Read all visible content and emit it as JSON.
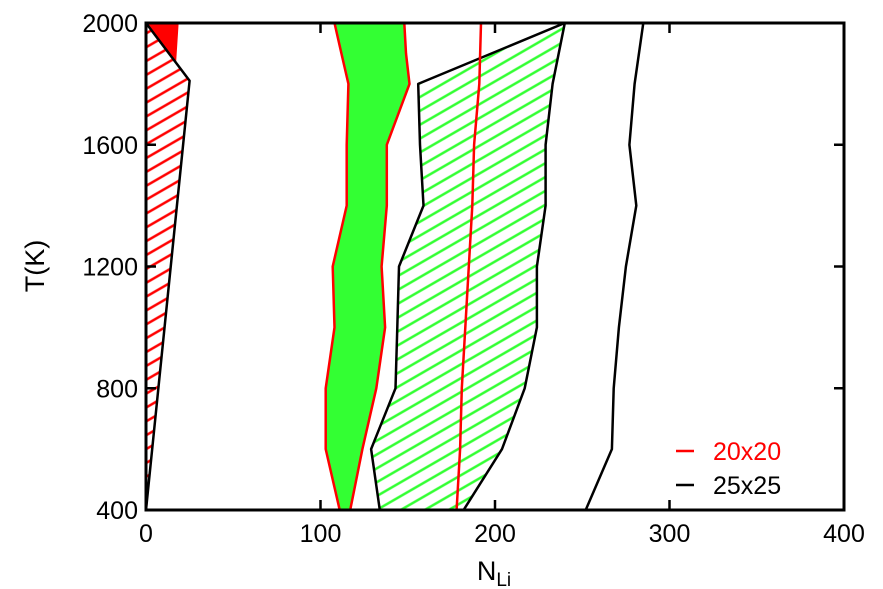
{
  "chart_data": {
    "type": "area",
    "xlabel_main": "N",
    "xlabel_sub": "Li",
    "ylabel": "T(K)",
    "xlim": [
      0,
      400
    ],
    "ylim": [
      400,
      2000
    ],
    "xticks": [
      0,
      100,
      200,
      300,
      400
    ],
    "yticks": [
      400,
      800,
      1200,
      1600,
      2000
    ],
    "grid": false,
    "legend_position": "bottom-right",
    "legend": [
      {
        "label": "20x20",
        "color": "#ff0000"
      },
      {
        "label": "25x25",
        "color": "#000000"
      }
    ],
    "regions": [
      {
        "name": "20x20-left-solid",
        "style": "solid",
        "fill": "#ff0000",
        "edge": "#ff0000",
        "left_boundary": [
          [
            0,
            400
          ],
          [
            0,
            2000
          ]
        ],
        "right_boundary": [
          [
            0,
            400
          ],
          [
            18,
            2000
          ]
        ]
      },
      {
        "name": "25x25-left-hatched",
        "style": "hatched",
        "fill": "#ff0000",
        "edge": "#000000",
        "left_boundary": [
          [
            0,
            400
          ],
          [
            0,
            2000
          ]
        ],
        "right_boundary": [
          [
            0,
            400
          ],
          [
            25,
            1810
          ]
        ]
      },
      {
        "name": "20x20-middle-solid",
        "style": "solid",
        "fill": "#33ff33",
        "edge": "#ff0000",
        "left_boundary": [
          [
            111,
            400
          ],
          [
            103,
            600
          ],
          [
            103,
            800
          ],
          [
            108,
            1000
          ],
          [
            107,
            1200
          ],
          [
            115,
            1400
          ],
          [
            115,
            1600
          ],
          [
            116,
            1800
          ],
          [
            112,
            1900
          ],
          [
            108,
            2000
          ]
        ],
        "right_boundary": [
          [
            117,
            400
          ],
          [
            124,
            600
          ],
          [
            132,
            800
          ],
          [
            137,
            1000
          ],
          [
            135,
            1200
          ],
          [
            138,
            1400
          ],
          [
            138,
            1600
          ],
          [
            151,
            1800
          ],
          [
            149,
            1900
          ],
          [
            148,
            2000
          ]
        ]
      },
      {
        "name": "25x25-middle-hatched",
        "style": "hatched",
        "fill": "#33ff33",
        "edge": "#000000",
        "left_boundary": [
          [
            134,
            400
          ],
          [
            129,
            600
          ],
          [
            143,
            800
          ],
          [
            144,
            1000
          ],
          [
            145,
            1200
          ],
          [
            159,
            1400
          ],
          [
            157,
            1600
          ],
          [
            156,
            1800
          ]
        ],
        "right_boundary": [
          [
            182,
            400
          ],
          [
            204,
            600
          ],
          [
            217,
            800
          ],
          [
            224,
            1000
          ],
          [
            224,
            1200
          ],
          [
            229,
            1400
          ],
          [
            229,
            1600
          ],
          [
            233,
            1800
          ],
          [
            240,
            2000
          ]
        ]
      }
    ],
    "lines": [
      {
        "name": "20x20-boundary",
        "color": "#ff0000",
        "points": [
          [
            178,
            400
          ],
          [
            180,
            600
          ],
          [
            181,
            800
          ],
          [
            183,
            1000
          ],
          [
            185,
            1200
          ],
          [
            187,
            1400
          ],
          [
            188,
            1600
          ],
          [
            191,
            1800
          ],
          [
            192,
            2000
          ]
        ]
      },
      {
        "name": "25x25-boundary",
        "color": "#000000",
        "points": [
          [
            252,
            400
          ],
          [
            267,
            600
          ],
          [
            268,
            800
          ],
          [
            271,
            1000
          ],
          [
            275,
            1200
          ],
          [
            281,
            1400
          ],
          [
            277,
            1600
          ],
          [
            280,
            1800
          ],
          [
            285,
            2000
          ]
        ]
      }
    ]
  }
}
